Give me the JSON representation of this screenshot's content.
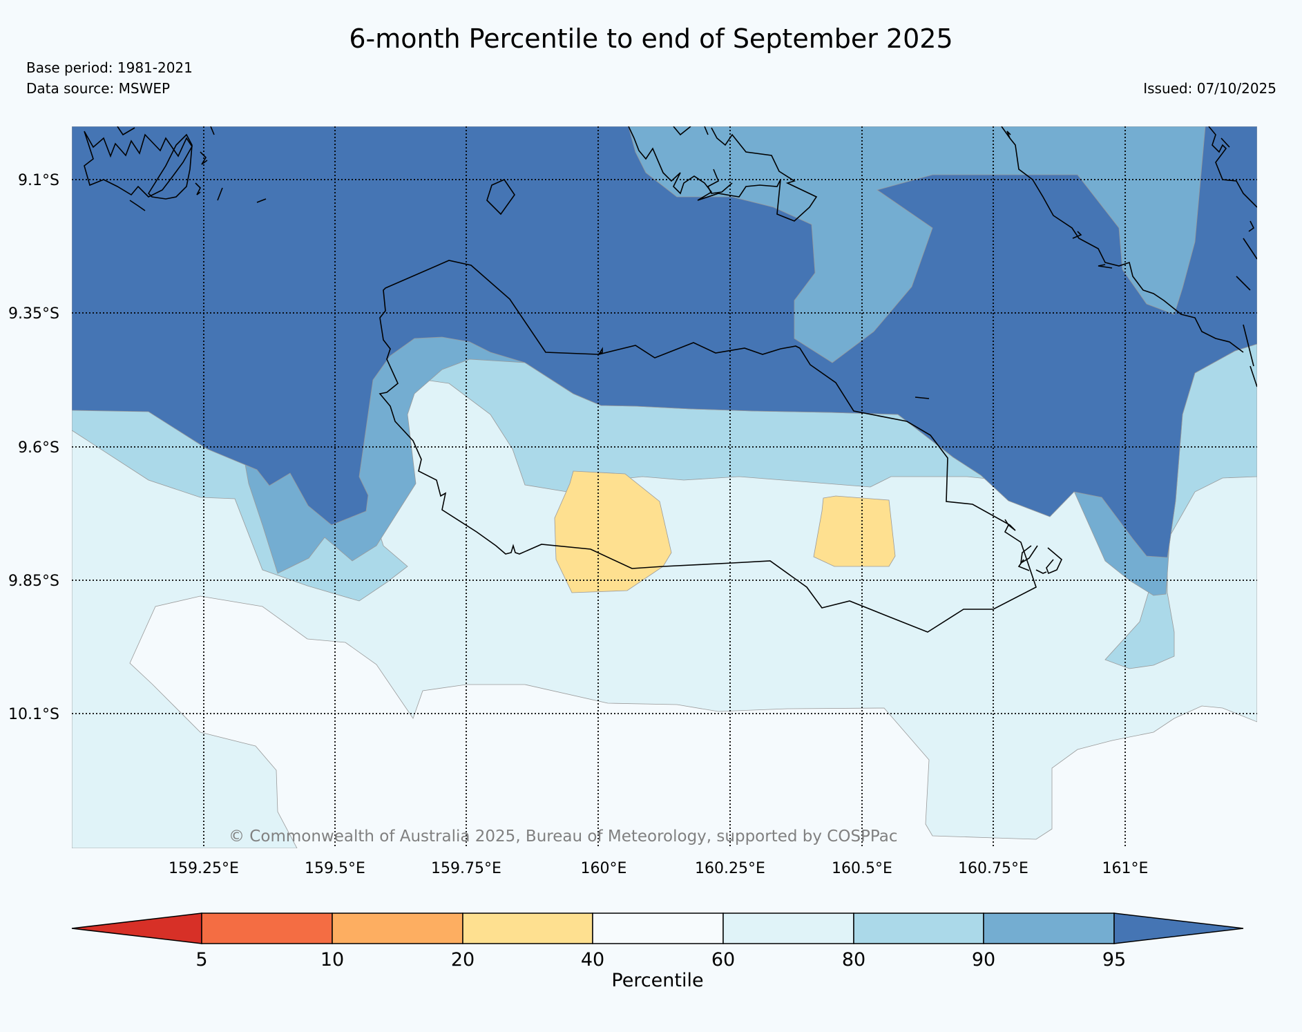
{
  "header": {
    "title": "6-month Percentile to end of September 2025",
    "base_period": "Base period: 1981-2021",
    "data_source": "Data source: MSWEP",
    "issued": "Issued: 07/10/2025"
  },
  "map": {
    "copyright": "© Commonwealth of Australia 2025, Bureau of Meteorology, supported by COSPPac",
    "lat_labels": [
      "9.1°S",
      "9.35°S",
      "9.6°S",
      "9.85°S",
      "10.1°S"
    ],
    "lon_labels": [
      "159.25°E",
      "159.5°E",
      "159.75°E",
      "160°E",
      "160.25°E",
      "160.5°E",
      "160.75°E",
      "161°E"
    ],
    "region_colors": {
      "above_95": "#4575b4",
      "p90_95": "#74add1",
      "p80_90": "#abd9e9",
      "p60_80": "#e0f3f8",
      "p40_60": "#f5fafd",
      "p20_40": "#fee090"
    }
  },
  "colorbar": {
    "label": "Percentile",
    "ticks": [
      "5",
      "10",
      "20",
      "40",
      "60",
      "80",
      "90",
      "95"
    ],
    "colors": [
      "#d73027",
      "#f46d43",
      "#fdae61",
      "#fee090",
      "#f7fbfd",
      "#e0f3f8",
      "#abd9e9",
      "#74add1",
      "#4575b4"
    ]
  }
}
